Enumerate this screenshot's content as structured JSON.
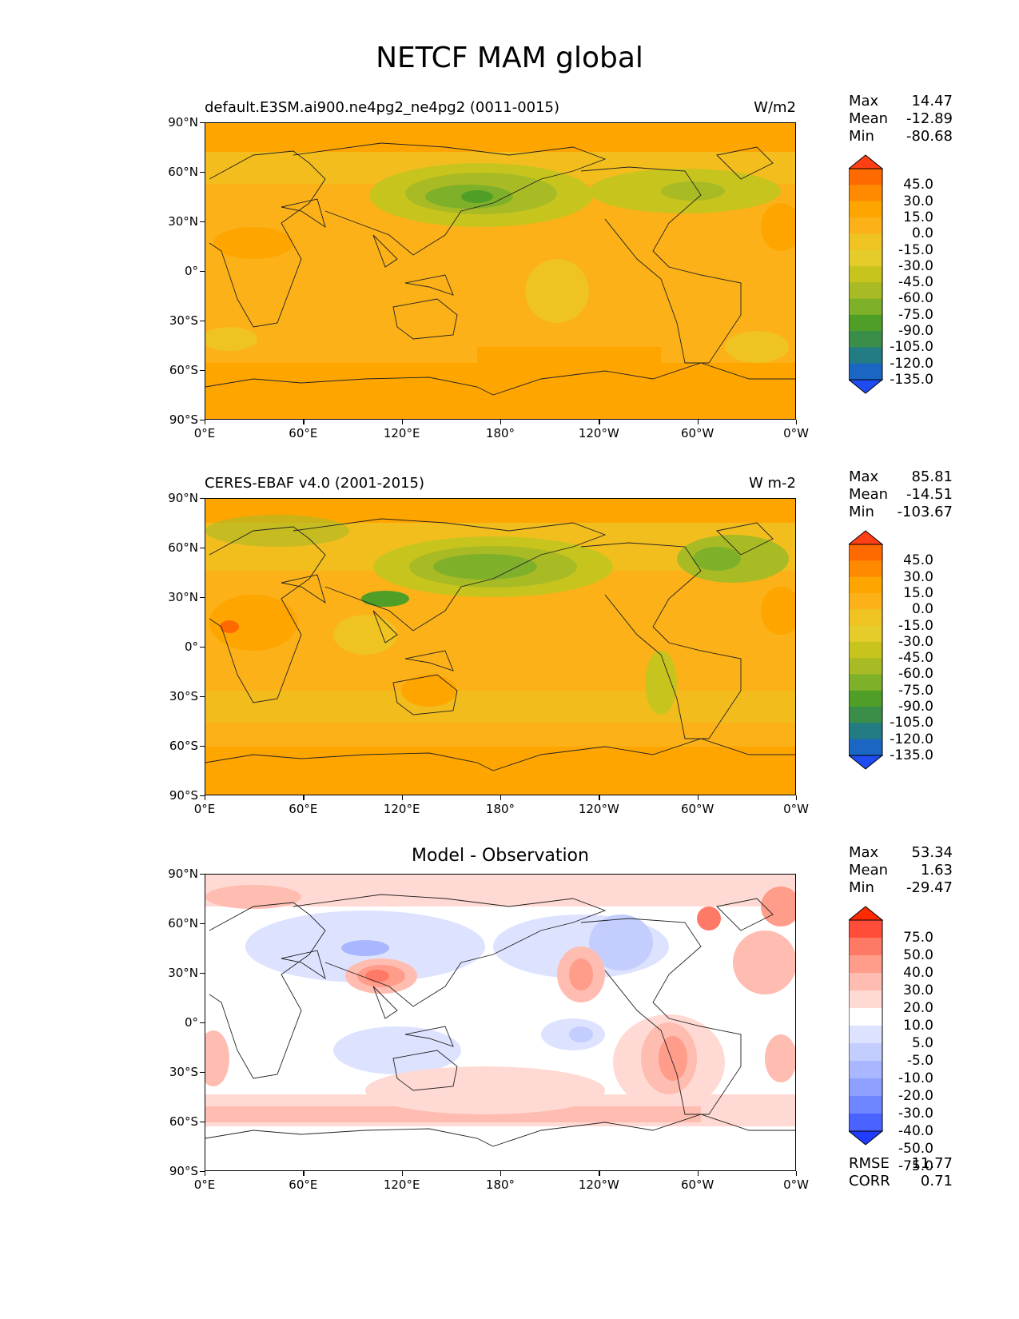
{
  "title": "NETCF MAM global",
  "latitude_ticks": [
    "90°N",
    "60°N",
    "30°N",
    "0°",
    "30°S",
    "60°S",
    "90°S"
  ],
  "longitude_ticks": [
    "0°E",
    "60°E",
    "120°E",
    "180°",
    "120°W",
    "60°W",
    "0°W"
  ],
  "colors": {
    "field_levels": [
      "#ff3f14",
      "#ff6a00",
      "#ff8a00",
      "#ffa500",
      "#fbb117",
      "#efc321",
      "#e6cc2a",
      "#c8c41e",
      "#a8bb24",
      "#7fb02a",
      "#4f9e27",
      "#3b8e4a",
      "#237b84",
      "#1a66c2",
      "#1f4cf0"
    ],
    "diff_levels": [
      "#ff2a00",
      "#ff4d3a",
      "#ff7a66",
      "#ff9c8a",
      "#ffbcb0",
      "#ffd9d3",
      "#ffffff",
      "#dde3ff",
      "#c3ceff",
      "#a8b7ff",
      "#8ea0ff",
      "#6e86ff",
      "#4a63ff",
      "#1f3cff"
    ]
  },
  "panels": [
    {
      "name": "model",
      "left_label": "default.E3SM.ai900.ne4pg2_ne4pg2 (0011-0015)",
      "right_label": "W/m2",
      "center_label": "",
      "stats": [
        {
          "label": "Max",
          "value": "14.47"
        },
        {
          "label": "Mean",
          "value": "-12.89"
        },
        {
          "label": "Min",
          "value": "-80.68"
        }
      ],
      "colorbar_type": "field",
      "colorbar_labels": [
        "45.0",
        "30.0",
        "15.0",
        "0.0",
        "-15.0",
        "-30.0",
        "-45.0",
        "-60.0",
        "-75.0",
        "-90.0",
        "-105.0",
        "-120.0",
        "-135.0"
      ]
    },
    {
      "name": "observation",
      "left_label": "CERES-EBAF v4.0 (2001-2015)",
      "right_label": "W m-2",
      "center_label": "",
      "stats": [
        {
          "label": "Max",
          "value": "85.81"
        },
        {
          "label": "Mean",
          "value": "-14.51"
        },
        {
          "label": "Min",
          "value": "-103.67"
        }
      ],
      "colorbar_type": "field",
      "colorbar_labels": [
        "45.0",
        "30.0",
        "15.0",
        "0.0",
        "-15.0",
        "-30.0",
        "-45.0",
        "-60.0",
        "-75.0",
        "-90.0",
        "-105.0",
        "-120.0",
        "-135.0"
      ]
    },
    {
      "name": "difference",
      "left_label": "",
      "right_label": "",
      "center_label": "Model - Observation",
      "stats": [
        {
          "label": "Max",
          "value": "53.34"
        },
        {
          "label": "Mean",
          "value": "1.63"
        },
        {
          "label": "Min",
          "value": "-29.47"
        }
      ],
      "colorbar_type": "diff",
      "colorbar_labels": [
        "75.0",
        "50.0",
        "40.0",
        "30.0",
        "20.0",
        "10.0",
        "5.0",
        "-5.0",
        "-10.0",
        "-20.0",
        "-30.0",
        "-40.0",
        "-50.0",
        "-75.0"
      ],
      "bottom_stats": [
        {
          "label": "RMSE",
          "value": "11.77"
        },
        {
          "label": "CORR",
          "value": "0.71"
        }
      ]
    }
  ]
}
